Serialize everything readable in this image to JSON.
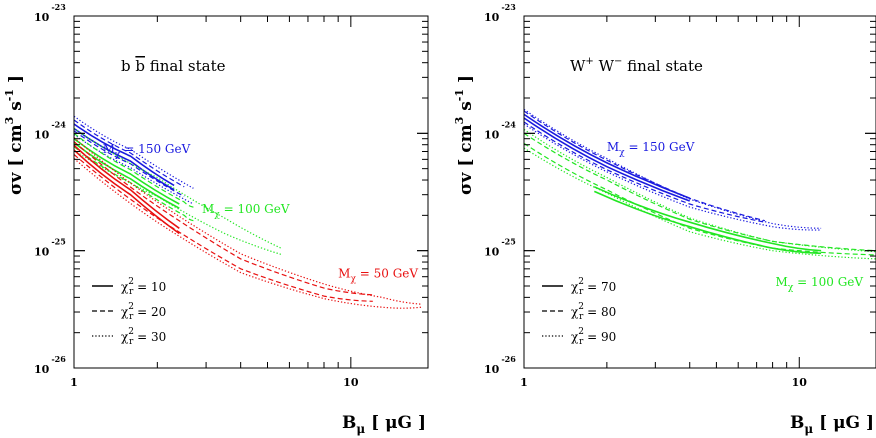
{
  "colors": {
    "red": "#e81010",
    "green": "#22e622",
    "blue": "#1a1adf",
    "frame": "#000000"
  },
  "styles": {
    "solid": "solid",
    "dashed": "dashed",
    "dotted": "dotted"
  },
  "axes": {
    "xlabel_main": "B",
    "xlabel_sub": "μ",
    "xlabel_unit": "[ μG ]",
    "ylabel_main": "σv  [ cm",
    "ylabel_sup1": "3",
    "ylabel_mid": " s",
    "ylabel_sup2": "-1",
    "ylabel_end": " ]",
    "x_ticks": [
      {
        "value": 1,
        "label": "1"
      },
      {
        "value": 10,
        "label": "10"
      }
    ],
    "y_ticks": [
      {
        "value": 1e-26,
        "base": "10",
        "exp": "-26"
      },
      {
        "value": 1e-25,
        "base": "10",
        "exp": "-25"
      },
      {
        "value": 1e-24,
        "base": "10",
        "exp": "-24"
      },
      {
        "value": 1e-23,
        "base": "10",
        "exp": "-23"
      }
    ]
  },
  "chart_data": [
    {
      "type": "line",
      "title": "b b̄ final state",
      "title_parts": {
        "a": "b ",
        "b": "b",
        "c": " final state"
      },
      "xscale": "log",
      "yscale": "log",
      "xlim": [
        1,
        19
      ],
      "ylim": [
        1e-26,
        1e-23
      ],
      "mass_labels": [
        {
          "text_main": "M",
          "text_sub": "χ",
          "text_rest": " = 150 GeV",
          "color": "blue",
          "x": 1.27,
          "y": 6.8e-25
        },
        {
          "text_main": "M",
          "text_sub": "χ",
          "text_rest": " = 100 GeV",
          "color": "green",
          "x": 2.9,
          "y": 2.1e-25
        },
        {
          "text_main": "M",
          "text_sub": "χ",
          "text_rest": " = 50 GeV",
          "color": "red",
          "x": 9.0,
          "y": 5.9e-26
        }
      ],
      "legend": [
        {
          "style": "solid",
          "text_main": "χ",
          "text_sup": "2",
          "text_sub": "r",
          "text_rest": " = 10"
        },
        {
          "style": "dashed",
          "text_main": "χ",
          "text_sup": "2",
          "text_sub": "r",
          "text_rest": " = 20"
        },
        {
          "style": "dotted",
          "text_main": "χ",
          "text_sup": "2",
          "text_sub": "r",
          "text_rest": " = 30"
        }
      ],
      "series": [
        {
          "name": "M_χ = 150 GeV, χ²_r = 10",
          "color": "blue",
          "style": "solid",
          "x": [
            1,
            1.6,
            2.3
          ],
          "y": [
            1.2e-24,
            6.4e-25,
            3.6e-25
          ]
        },
        {
          "name": "M_χ = 150 GeV, χ²_r = 10",
          "color": "blue",
          "style": "solid",
          "x": [
            1,
            1.6,
            2.3
          ],
          "y": [
            1.1e-24,
            5.8e-25,
            3.3e-25
          ]
        },
        {
          "name": "M_χ = 150 GeV, χ²_r = 20",
          "color": "blue",
          "style": "dashed",
          "x": [
            1,
            1.6,
            2.5
          ],
          "y": [
            1.3e-24,
            6.8e-25,
            3.5e-25
          ]
        },
        {
          "name": "M_χ = 150 GeV, χ²_r = 20",
          "color": "blue",
          "style": "dashed",
          "x": [
            1,
            1.6,
            2.5
          ],
          "y": [
            1.05e-24,
            5.5e-25,
            2.9e-25
          ]
        },
        {
          "name": "M_χ = 150 GeV, χ²_r = 30",
          "color": "blue",
          "style": "dotted",
          "x": [
            1,
            1.6,
            2.7
          ],
          "y": [
            1.4e-24,
            7.3e-25,
            3.4e-25
          ]
        },
        {
          "name": "M_χ = 150 GeV, χ²_r = 30",
          "color": "blue",
          "style": "dotted",
          "x": [
            1,
            1.6,
            2.7
          ],
          "y": [
            9.8e-25,
            5.1e-25,
            2.5e-25
          ]
        },
        {
          "name": "M_χ = 100 GeV, χ²_r = 10",
          "color": "green",
          "style": "solid",
          "x": [
            1,
            1.6,
            2.4
          ],
          "y": [
            9e-25,
            4.5e-25,
            2.5e-25
          ]
        },
        {
          "name": "M_χ = 100 GeV, χ²_r = 10",
          "color": "green",
          "style": "solid",
          "x": [
            1,
            1.6,
            2.4
          ],
          "y": [
            8.3e-25,
            4.1e-25,
            2.3e-25
          ]
        },
        {
          "name": "M_χ = 100 GeV, χ²_r = 20",
          "color": "green",
          "style": "dashed",
          "x": [
            1,
            1.6,
            2.5,
            2.7
          ],
          "y": [
            1e-24,
            4.9e-25,
            2.6e-25,
            2.35e-25
          ]
        },
        {
          "name": "M_χ = 100 GeV, χ²_r = 20",
          "color": "green",
          "style": "dashed",
          "x": [
            1,
            1.6,
            2.5,
            2.7
          ],
          "y": [
            7.7e-25,
            3.8e-25,
            2e-25,
            1.8e-25
          ]
        },
        {
          "name": "M_χ = 100 GeV, χ²_r = 30",
          "color": "green",
          "style": "dotted",
          "x": [
            1,
            2,
            3.5,
            5.6
          ],
          "y": [
            1.1e-24,
            4.2e-25,
            1.9e-25,
            1.05e-25
          ]
        },
        {
          "name": "M_χ = 100 GeV, χ²_r = 30",
          "color": "green",
          "style": "dotted",
          "x": [
            1,
            2,
            3.5,
            5.6
          ],
          "y": [
            7.2e-25,
            2.9e-25,
            1.4e-25,
            9.3e-26
          ]
        },
        {
          "name": "M_χ = 50 GeV, χ²_r = 10",
          "color": "red",
          "style": "solid",
          "x": [
            1,
            1.6,
            2.4
          ],
          "y": [
            7.9e-25,
            3.3e-25,
            1.55e-25
          ]
        },
        {
          "name": "M_χ = 50 GeV, χ²_r = 10",
          "color": "red",
          "style": "solid",
          "x": [
            1,
            1.6,
            2.4
          ],
          "y": [
            7.2e-25,
            3e-25,
            1.4e-25
          ]
        },
        {
          "name": "M_χ = 50 GeV, χ²_r = 20",
          "color": "red",
          "style": "dashed",
          "x": [
            1,
            2,
            4,
            8,
            12
          ],
          "y": [
            8.5e-25,
            2.4e-25,
            8.5e-26,
            4.8e-26,
            4.2e-26
          ]
        },
        {
          "name": "M_χ = 50 GeV, χ²_r = 20",
          "color": "red",
          "style": "dashed",
          "x": [
            1,
            2,
            4,
            8,
            12
          ],
          "y": [
            6.6e-25,
            1.9e-25,
            7e-26,
            4.1e-26,
            3.7e-26
          ]
        },
        {
          "name": "M_χ = 50 GeV, χ²_r = 30",
          "color": "red",
          "style": "dotted",
          "x": [
            1,
            2,
            4,
            8,
            13,
            18
          ],
          "y": [
            9.2e-25,
            2.6e-25,
            9.4e-26,
            5.2e-26,
            4e-26,
            3.5e-26
          ]
        },
        {
          "name": "M_χ = 50 GeV, χ²_r = 30",
          "color": "red",
          "style": "dotted",
          "x": [
            1,
            2,
            4,
            8,
            13,
            18
          ],
          "y": [
            6.1e-25,
            1.75e-25,
            6.5e-26,
            3.9e-26,
            3.3e-26,
            3.3e-26
          ]
        }
      ]
    },
    {
      "type": "line",
      "title": "W⁺ W⁻ final state",
      "title_parts": {
        "a": "W",
        "b": "+",
        "c": " W",
        "d": "−",
        "e": " final state"
      },
      "xscale": "log",
      "yscale": "log",
      "xlim": [
        1,
        19
      ],
      "ylim": [
        1e-26,
        1e-23
      ],
      "mass_labels": [
        {
          "text_main": "M",
          "text_sub": "χ",
          "text_rest": " = 150 GeV",
          "color": "blue",
          "x": 2.0,
          "y": 7.1e-25
        },
        {
          "text_main": "M",
          "text_sub": "χ",
          "text_rest": " = 100 GeV",
          "color": "green",
          "x": 8.2,
          "y": 5e-26
        }
      ],
      "legend": [
        {
          "style": "solid",
          "text_main": "χ",
          "text_sup": "2",
          "text_sub": "r",
          "text_rest": " = 70"
        },
        {
          "style": "dashed",
          "text_main": "χ",
          "text_sup": "2",
          "text_sub": "r",
          "text_rest": " = 80"
        },
        {
          "style": "dotted",
          "text_main": "χ",
          "text_sup": "2",
          "text_sub": "r",
          "text_rest": " = 90"
        }
      ],
      "series": [
        {
          "name": "M_χ = 150 GeV, χ²_r = 70",
          "color": "blue",
          "style": "solid",
          "x": [
            1,
            2,
            4
          ],
          "y": [
            1.45e-24,
            5.6e-25,
            2.8e-25
          ]
        },
        {
          "name": "M_χ = 150 GeV, χ²_r = 70",
          "color": "blue",
          "style": "solid",
          "x": [
            1,
            2,
            4
          ],
          "y": [
            1.35e-24,
            5.2e-25,
            2.65e-25
          ]
        },
        {
          "name": "M_χ = 150 GeV, χ²_r = 80",
          "color": "blue",
          "style": "dashed",
          "x": [
            1,
            2,
            4,
            7.5
          ],
          "y": [
            1.55e-24,
            5.9e-25,
            2.8e-25,
            1.8e-25
          ]
        },
        {
          "name": "M_χ = 150 GeV, χ²_r = 80",
          "color": "blue",
          "style": "dashed",
          "x": [
            1,
            2,
            4,
            7.5
          ],
          "y": [
            1.25e-24,
            4.9e-25,
            2.5e-25,
            1.75e-25
          ]
        },
        {
          "name": "M_χ = 150 GeV, χ²_r = 90",
          "color": "blue",
          "style": "dotted",
          "x": [
            1,
            2,
            4,
            8,
            12
          ],
          "y": [
            1.6e-24,
            6.1e-25,
            2.75e-25,
            1.7e-25,
            1.55e-25
          ]
        },
        {
          "name": "M_χ = 150 GeV, χ²_r = 90",
          "color": "blue",
          "style": "dotted",
          "x": [
            1,
            2,
            4,
            8,
            12
          ],
          "y": [
            1.2e-24,
            4.7e-25,
            2.35e-25,
            1.6e-25,
            1.5e-25
          ]
        },
        {
          "name": "M_χ = 100 GeV, χ²_r = 70",
          "color": "green",
          "style": "solid",
          "x": [
            1.8,
            4,
            8,
            12
          ],
          "y": [
            3.5e-25,
            1.75e-25,
            1.15e-25,
            1e-25
          ]
        },
        {
          "name": "M_χ = 100 GeV, χ²_r = 70",
          "color": "green",
          "style": "solid",
          "x": [
            1.8,
            4,
            8,
            12
          ],
          "y": [
            3.2e-25,
            1.6e-25,
            1.05e-25,
            9.5e-26
          ]
        },
        {
          "name": "M_χ = 100 GeV, χ²_r = 80",
          "color": "green",
          "style": "dashed",
          "x": [
            1,
            2,
            4,
            8,
            19
          ],
          "y": [
            1e-24,
            4e-25,
            1.85e-25,
            1.2e-25,
            1e-25
          ]
        },
        {
          "name": "M_χ = 100 GeV, χ²_r = 80",
          "color": "green",
          "style": "dashed",
          "x": [
            1,
            2,
            4,
            8,
            19
          ],
          "y": [
            8.2e-25,
            3.3e-25,
            1.55e-25,
            1.05e-25,
            9.2e-26
          ]
        },
        {
          "name": "M_χ = 100 GeV, χ²_r = 90",
          "color": "green",
          "style": "dotted",
          "x": [
            1,
            2,
            4,
            8,
            19
          ],
          "y": [
            1.08e-24,
            4.2e-25,
            1.9e-25,
            1.2e-25,
            9.8e-26
          ]
        },
        {
          "name": "M_χ = 100 GeV, χ²_r = 90",
          "color": "green",
          "style": "dotted",
          "x": [
            1,
            2,
            4,
            8,
            19
          ],
          "y": [
            7.5e-25,
            3.1e-25,
            1.45e-25,
            1e-25,
            8.5e-26
          ]
        }
      ]
    }
  ]
}
